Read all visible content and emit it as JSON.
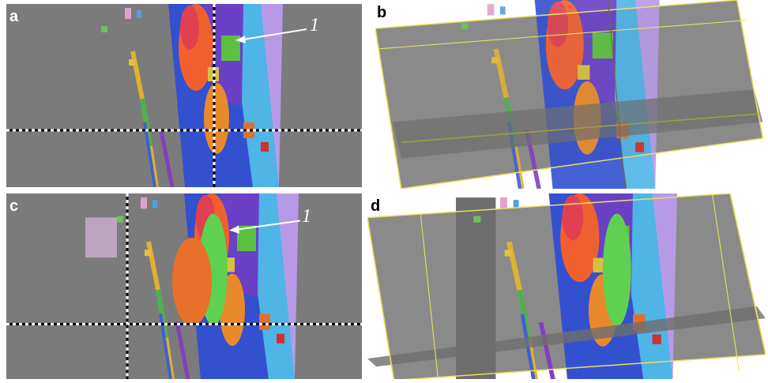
{
  "panels": [
    {
      "label": "a",
      "annotation": "1"
    },
    {
      "label": "b"
    },
    {
      "label": "c",
      "annotation": "1"
    },
    {
      "label": "d"
    }
  ]
}
